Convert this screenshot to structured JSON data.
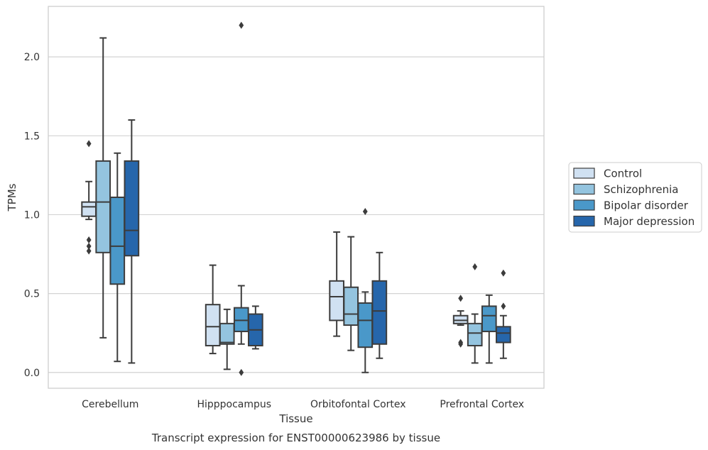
{
  "caption": "Transcript expression for ENST00000623986 by tissue",
  "chart_data": {
    "type": "box",
    "xlabel": "Tissue",
    "ylabel": "TPMs",
    "categories": [
      "Cerebellum",
      "Hipppocampus",
      "Orbitofontal Cortex",
      "Prefrontal Cortex"
    ],
    "ylim": [
      -0.1,
      2.32
    ],
    "yticks": [
      "0.0",
      "0.5",
      "1.0",
      "1.5",
      "2.0"
    ],
    "grid": "horizontal",
    "legend_position": "right",
    "series": [
      {
        "name": "Control",
        "color": "#d0e1f2",
        "boxes": [
          {
            "whislo": 0.97,
            "q1": 0.99,
            "med": 1.05,
            "q3": 1.08,
            "whishi": 1.21,
            "fliers": [
              1.45,
              0.84,
              0.8,
              0.77
            ]
          },
          {
            "whislo": 0.12,
            "q1": 0.17,
            "med": 0.29,
            "q3": 0.43,
            "whishi": 0.68,
            "fliers": []
          },
          {
            "whislo": 0.23,
            "q1": 0.33,
            "med": 0.48,
            "q3": 0.58,
            "whishi": 0.89,
            "fliers": []
          },
          {
            "whislo": 0.3,
            "q1": 0.31,
            "med": 0.33,
            "q3": 0.36,
            "whishi": 0.39,
            "fliers": [
              0.47,
              0.19,
              0.18
            ]
          }
        ]
      },
      {
        "name": "Schizophrenia",
        "color": "#94c4df",
        "boxes": [
          {
            "whislo": 0.22,
            "q1": 0.76,
            "med": 1.08,
            "q3": 1.34,
            "whishi": 2.12,
            "fliers": []
          },
          {
            "whislo": 0.02,
            "q1": 0.18,
            "med": 0.19,
            "q3": 0.31,
            "whishi": 0.4,
            "fliers": []
          },
          {
            "whislo": 0.14,
            "q1": 0.3,
            "med": 0.37,
            "q3": 0.54,
            "whishi": 0.86,
            "fliers": []
          },
          {
            "whislo": 0.06,
            "q1": 0.17,
            "med": 0.25,
            "q3": 0.31,
            "whishi": 0.37,
            "fliers": [
              0.67
            ]
          }
        ]
      },
      {
        "name": "Bipolar disorder",
        "color": "#4a98c9",
        "boxes": [
          {
            "whislo": 0.07,
            "q1": 0.56,
            "med": 0.8,
            "q3": 1.11,
            "whishi": 1.39,
            "fliers": []
          },
          {
            "whislo": 0.18,
            "q1": 0.26,
            "med": 0.33,
            "q3": 0.41,
            "whishi": 0.55,
            "fliers": [
              2.2,
              0.0
            ]
          },
          {
            "whislo": 0.0,
            "q1": 0.16,
            "med": 0.33,
            "q3": 0.44,
            "whishi": 0.51,
            "fliers": [
              1.02
            ]
          },
          {
            "whislo": 0.06,
            "q1": 0.26,
            "med": 0.36,
            "q3": 0.42,
            "whishi": 0.49,
            "fliers": []
          }
        ]
      },
      {
        "name": "Major depression",
        "color": "#2666ab",
        "boxes": [
          {
            "whislo": 0.06,
            "q1": 0.74,
            "med": 0.9,
            "q3": 1.34,
            "whishi": 1.6,
            "fliers": []
          },
          {
            "whislo": 0.15,
            "q1": 0.17,
            "med": 0.27,
            "q3": 0.37,
            "whishi": 0.42,
            "fliers": []
          },
          {
            "whislo": 0.09,
            "q1": 0.18,
            "med": 0.39,
            "q3": 0.58,
            "whishi": 0.76,
            "fliers": []
          },
          {
            "whislo": 0.09,
            "q1": 0.19,
            "med": 0.25,
            "q3": 0.29,
            "whishi": 0.36,
            "fliers": [
              0.63,
              0.42
            ]
          }
        ]
      }
    ]
  }
}
